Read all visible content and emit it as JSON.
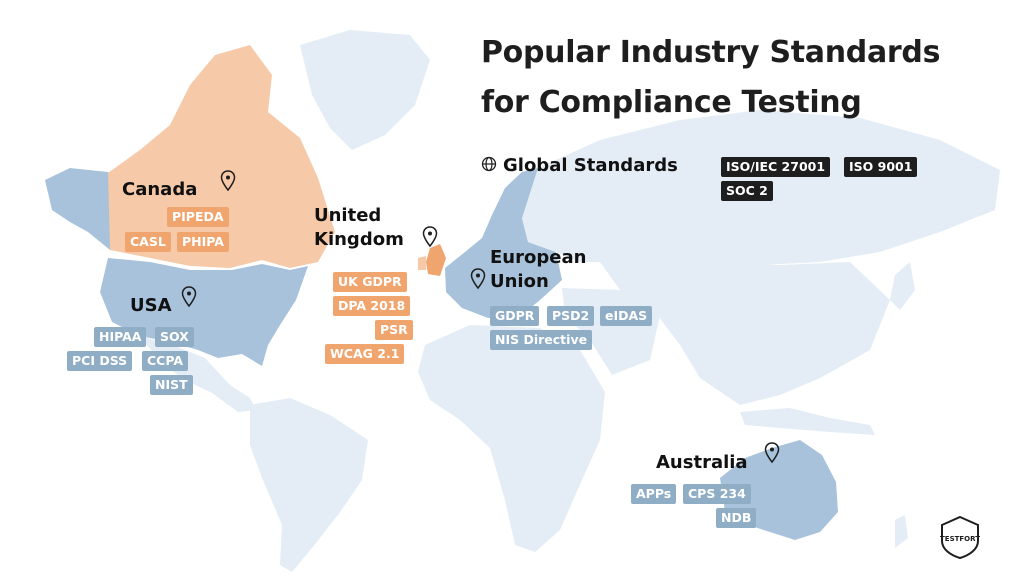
{
  "title_line1": "Popular Industry Standards",
  "title_line2": "for Compliance Testing",
  "global": {
    "label": "Global Standards",
    "icon": "globe-icon",
    "tags": [
      "ISO/IEC 27001",
      "ISO 9001",
      "SOC 2"
    ]
  },
  "regions": {
    "canada": {
      "label": "Canada",
      "tags": [
        "PIPEDA",
        "CASL",
        "PHIPA"
      ],
      "highlight": "orange"
    },
    "usa": {
      "label": "USA",
      "tags": [
        "HIPAA",
        "SOX",
        "PCI DSS",
        "CCPA",
        "NIST"
      ],
      "highlight": "blue"
    },
    "uk": {
      "label_line1": "United",
      "label_line2": "Kingdom",
      "tags": [
        "UK GDPR",
        "DPA 2018",
        "PSR",
        "WCAG 2.1"
      ],
      "highlight": "orange"
    },
    "eu": {
      "label_line1": "European",
      "label_line2": "Union",
      "tags": [
        "GDPR",
        "PSD2",
        "eIDAS",
        "NIS Directive"
      ],
      "highlight": "blue"
    },
    "australia": {
      "label": "Australia",
      "tags": [
        "APPs",
        "CPS 234",
        "NDB"
      ],
      "highlight": "blue"
    }
  },
  "logo": {
    "text": "TESTFORT"
  },
  "colors": {
    "map_base": "#e4edf5",
    "highlight_blue": "#a7c2da",
    "highlight_orange": "#f6c9a8",
    "tag_blue": "#8fadc5",
    "tag_orange": "#f0a56e",
    "tag_dark": "#1e1e1e",
    "pin": "#1e1e1e"
  }
}
